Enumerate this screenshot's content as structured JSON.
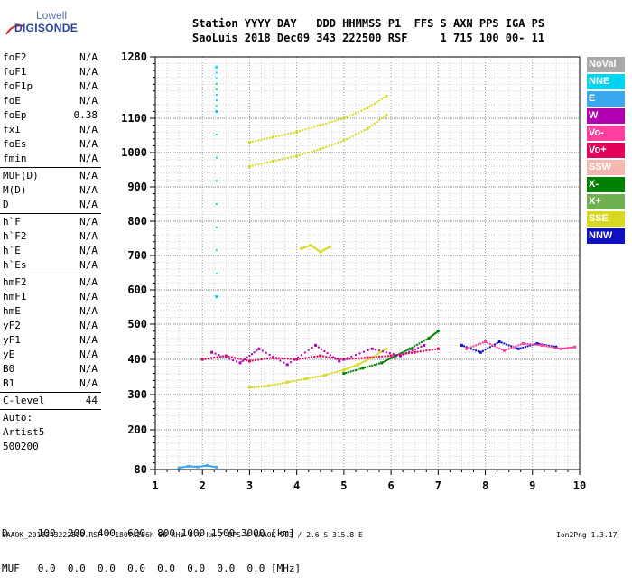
{
  "logo": {
    "line1": "Lowell",
    "line2": "DIGISONDE"
  },
  "header": {
    "line1": "Station YYYY DAY   DDD HHMMSS P1  FFS S AXN PPS IGA PS",
    "line2": "SaoLuis 2018 Dec09 343 222500 RSF     1 715 100 00- 11"
  },
  "params": [
    {
      "name": "foF2",
      "value": "N/A"
    },
    {
      "name": "foF1",
      "value": "N/A"
    },
    {
      "name": "foF1p",
      "value": "N/A"
    },
    {
      "name": "foE",
      "value": "N/A"
    },
    {
      "name": "foEp",
      "value": "0.38"
    },
    {
      "name": "fxI",
      "value": "N/A"
    },
    {
      "name": "foEs",
      "value": "N/A"
    },
    {
      "name": "fmin",
      "value": "N/A"
    },
    {
      "sep": true
    },
    {
      "name": "MUF(D)",
      "value": "N/A"
    },
    {
      "name": "M(D)",
      "value": "N/A"
    },
    {
      "name": "D",
      "value": "N/A"
    },
    {
      "sep": true
    },
    {
      "name": "h`F",
      "value": "N/A"
    },
    {
      "name": "h`F2",
      "value": "N/A"
    },
    {
      "name": "h`E",
      "value": "N/A"
    },
    {
      "name": "h`Es",
      "value": "N/A"
    },
    {
      "sep": true
    },
    {
      "name": "hmF2",
      "value": "N/A"
    },
    {
      "name": "hmF1",
      "value": "N/A"
    },
    {
      "name": "hmE",
      "value": "N/A"
    },
    {
      "name": "yF2",
      "value": "N/A"
    },
    {
      "name": "yF1",
      "value": "N/A"
    },
    {
      "name": "yE",
      "value": "N/A"
    },
    {
      "name": "B0",
      "value": "N/A"
    },
    {
      "name": "B1",
      "value": "N/A"
    },
    {
      "sep": true
    },
    {
      "name": "C-level",
      "value": "44"
    },
    {
      "sep": true
    },
    {
      "name": "Auto:",
      "value": ""
    },
    {
      "name": "Artist5",
      "value": ""
    },
    {
      "name": "500200",
      "value": ""
    }
  ],
  "legend": [
    {
      "label": "NoVal",
      "color": "#a9a9a9"
    },
    {
      "label": "NNE",
      "color": "#00d4f0"
    },
    {
      "label": "E",
      "color": "#3aa8f0"
    },
    {
      "label": "W",
      "color": "#b000b0"
    },
    {
      "label": "Vo-",
      "color": "#ff40a0"
    },
    {
      "label": "Vo+",
      "color": "#e0005a"
    },
    {
      "label": "SSW",
      "color": "#f4b8b0"
    },
    {
      "label": "X-",
      "color": "#008000"
    },
    {
      "label": "X+",
      "color": "#70b050"
    },
    {
      "label": "SSE",
      "color": "#d8d820"
    },
    {
      "label": "NNW",
      "color": "#1010c0"
    }
  ],
  "chart_data": {
    "type": "scatter",
    "x_ticks": [
      "1",
      "2",
      "3",
      "4",
      "5",
      "6",
      "7",
      "8",
      "9",
      "10"
    ],
    "y_ticks": [
      "80",
      "200",
      "300",
      "400",
      "500",
      "600",
      "700",
      "800",
      "900",
      "1000",
      "1100",
      "1280"
    ],
    "x_range": [
      1,
      10
    ],
    "y_range": [
      80,
      1280
    ],
    "grid": true,
    "series": [
      {
        "color": "#d8d820",
        "x": [
          3.0,
          3.4,
          3.8,
          4.2,
          4.6,
          5.0,
          5.3,
          5.6,
          5.9
        ],
        "y": [
          320,
          325,
          335,
          345,
          355,
          370,
          385,
          405,
          430
        ]
      },
      {
        "color": "#008000",
        "x": [
          5.0,
          5.4,
          5.8,
          6.1,
          6.4,
          6.8,
          7.0
        ],
        "y": [
          360,
          375,
          390,
          410,
          430,
          460,
          480
        ]
      },
      {
        "color": "#d8d820",
        "x": [
          3.0,
          3.5,
          4.0,
          4.5,
          5.0,
          5.5,
          5.9
        ],
        "y": [
          1030,
          1045,
          1060,
          1080,
          1100,
          1130,
          1165
        ]
      },
      {
        "color": "#d8d820",
        "x": [
          3.0,
          3.5,
          4.0,
          4.5,
          5.0,
          5.5,
          5.9
        ],
        "y": [
          960,
          975,
          990,
          1010,
          1035,
          1070,
          1110
        ]
      },
      {
        "color": "#e0005a",
        "x": [
          2.0,
          2.5,
          3.0,
          3.5,
          4.0,
          4.5,
          5.0,
          5.5,
          6.0,
          6.5,
          7.0
        ],
        "y": [
          400,
          410,
          395,
          405,
          400,
          410,
          400,
          405,
          410,
          420,
          430
        ]
      },
      {
        "color": "#b000b0",
        "x": [
          2.2,
          2.8,
          3.2,
          3.8,
          4.4,
          4.9,
          5.6,
          6.2,
          6.7
        ],
        "y": [
          420,
          390,
          430,
          385,
          440,
          395,
          430,
          410,
          440
        ]
      },
      {
        "color": "#1010c0",
        "x": [
          7.5,
          7.9,
          8.3,
          8.7,
          9.1,
          9.5
        ],
        "y": [
          440,
          420,
          450,
          430,
          445,
          435
        ]
      },
      {
        "color": "#ff40a0",
        "x": [
          7.6,
          8.0,
          8.4,
          8.8,
          9.2,
          9.6,
          9.9
        ],
        "y": [
          430,
          450,
          425,
          445,
          440,
          430,
          435
        ]
      },
      {
        "color": "#3aa8f0",
        "x": [
          1.5,
          1.7,
          1.9,
          2.1,
          2.3
        ],
        "y": [
          85,
          90,
          88,
          92,
          87
        ]
      },
      {
        "color": "#d8d820",
        "x": [
          4.1,
          4.3,
          4.5,
          4.7
        ],
        "y": [
          720,
          730,
          710,
          725
        ]
      },
      {
        "color": "#00d4f0",
        "x": [
          2.3,
          2.3,
          2.3
        ],
        "y": [
          1250,
          1120,
          580
        ]
      }
    ]
  },
  "dm_table": {
    "line1": "D     100  200  400  600  800 1000 1500 3000 [km]",
    "line2": "MUF   0.0  0.0  0.0  0.0  0.0  0.0  0.0  0.0 [MHz]"
  },
  "footer": {
    "left": "SAAOK_2018343222500.RSF / 180fx256h 50 kHz 5.0 km / DPS-4 SAAOK 903 / 2.6 S 315.8 E",
    "right": "Ion2Png 1.3.17"
  }
}
